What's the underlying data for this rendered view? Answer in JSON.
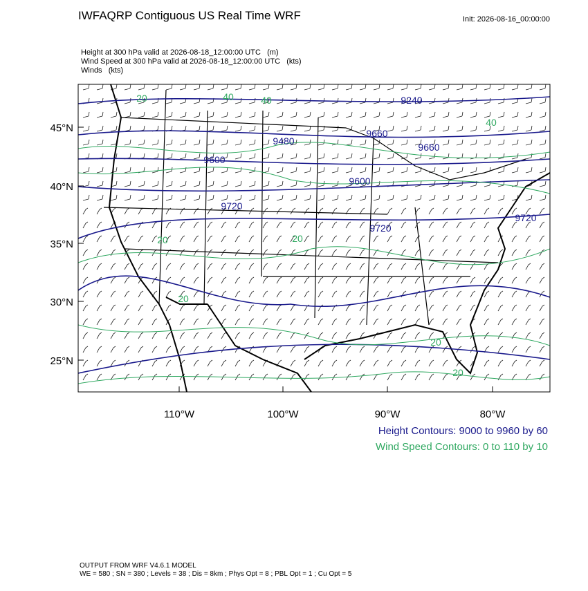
{
  "header": {
    "title": "IWFAQRP Contiguous US Real Time WRF",
    "init": "Init: 2026-08-16_00:00:00"
  },
  "description": [
    "Height at 300 hPa valid at 2026-08-18_12:00:00 UTC   (m)",
    "Wind Speed at 300 hPa valid at 2026-08-18_12:00:00 UTC   (kts)",
    "Winds   (kts)"
  ],
  "map": {
    "latitude_labels": [
      "45°N",
      "40°N",
      "35°N",
      "30°N",
      "25°N"
    ],
    "longitude_labels": [
      "110°W",
      "100°W",
      "90°W",
      "80°W"
    ],
    "height_contour_labels": [
      "9240",
      "9480",
      "9600",
      "9660",
      "9660",
      "9600",
      "9720",
      "9720",
      "9720"
    ],
    "wind_contour_labels": [
      "40",
      "40",
      "40",
      "20",
      "20",
      "20",
      "20",
      "20",
      "20"
    ]
  },
  "legend": {
    "height": "Height Contours: 9000 to 9960 by 60",
    "wind": "Wind Speed Contours: 0 to 110 by 10"
  },
  "footer": [
    "OUTPUT FROM WRF V4.6.1 MODEL",
    "WE = 580 ; SN = 380 ; Levels = 38 ; Dis = 8km ; Phys Opt = 8 ; PBL Opt = 1 ; Cu Opt = 5"
  ]
}
